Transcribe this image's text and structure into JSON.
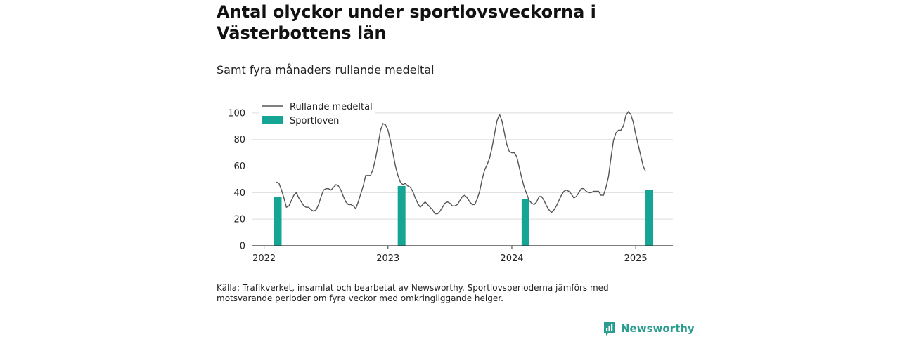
{
  "header": {
    "title": "Antal olyckor under sportlovsveckorna i Västerbottens län",
    "subtitle": "Samt fyra månaders rullande medeltal"
  },
  "footer": {
    "source": "Källa: Trafikverket, insamlat och bearbetat av Newsworthy. Sportlovsperioderna jämförs med motsvarande perioder om fyra veckor med omkringliggande helger.",
    "brand": "Newsworthy"
  },
  "colors": {
    "bar": "#16a594",
    "line": "#555555",
    "grid": "#dddddd",
    "axis": "#333333",
    "brand": "#2a9d8f"
  },
  "chart_data": {
    "type": "bar+line",
    "ylim": [
      0,
      110
    ],
    "xlim": [
      2021.9,
      2025.3
    ],
    "yticks": [
      0,
      20,
      40,
      60,
      80,
      100
    ],
    "xticks": [
      2022,
      2023,
      2024,
      2025
    ],
    "grid": "horizontal",
    "legend_position": "top-left",
    "series": [
      {
        "name": "Rullande medeltal",
        "kind": "line",
        "points": [
          [
            2022.1,
            48
          ],
          [
            2022.12,
            47
          ],
          [
            2022.14,
            42
          ],
          [
            2022.16,
            36
          ],
          [
            2022.18,
            29
          ],
          [
            2022.2,
            30
          ],
          [
            2022.22,
            34
          ],
          [
            2022.24,
            38
          ],
          [
            2022.26,
            40
          ],
          [
            2022.28,
            36
          ],
          [
            2022.3,
            33
          ],
          [
            2022.32,
            30
          ],
          [
            2022.34,
            29
          ],
          [
            2022.36,
            29
          ],
          [
            2022.38,
            27
          ],
          [
            2022.4,
            26
          ],
          [
            2022.42,
            27
          ],
          [
            2022.44,
            31
          ],
          [
            2022.46,
            37
          ],
          [
            2022.48,
            42
          ],
          [
            2022.5,
            43
          ],
          [
            2022.52,
            43
          ],
          [
            2022.54,
            42
          ],
          [
            2022.56,
            44
          ],
          [
            2022.58,
            46
          ],
          [
            2022.6,
            45
          ],
          [
            2022.62,
            42
          ],
          [
            2022.64,
            37
          ],
          [
            2022.66,
            33
          ],
          [
            2022.68,
            31
          ],
          [
            2022.7,
            31
          ],
          [
            2022.72,
            30
          ],
          [
            2022.74,
            28
          ],
          [
            2022.76,
            33
          ],
          [
            2022.78,
            39
          ],
          [
            2022.8,
            45
          ],
          [
            2022.82,
            53
          ],
          [
            2022.84,
            53
          ],
          [
            2022.86,
            53
          ],
          [
            2022.88,
            58
          ],
          [
            2022.9,
            66
          ],
          [
            2022.92,
            76
          ],
          [
            2022.94,
            87
          ],
          [
            2022.96,
            92
          ],
          [
            2022.98,
            91
          ],
          [
            2023.0,
            87
          ],
          [
            2023.02,
            79
          ],
          [
            2023.04,
            70
          ],
          [
            2023.06,
            60
          ],
          [
            2023.08,
            53
          ],
          [
            2023.1,
            48
          ],
          [
            2023.12,
            46
          ],
          [
            2023.14,
            47
          ],
          [
            2023.16,
            45
          ],
          [
            2023.18,
            44
          ],
          [
            2023.2,
            41
          ],
          [
            2023.22,
            36
          ],
          [
            2023.24,
            32
          ],
          [
            2023.26,
            29
          ],
          [
            2023.28,
            31
          ],
          [
            2023.3,
            33
          ],
          [
            2023.32,
            31
          ],
          [
            2023.34,
            29
          ],
          [
            2023.36,
            27
          ],
          [
            2023.38,
            24
          ],
          [
            2023.4,
            24
          ],
          [
            2023.42,
            26
          ],
          [
            2023.44,
            29
          ],
          [
            2023.46,
            32
          ],
          [
            2023.48,
            33
          ],
          [
            2023.5,
            32
          ],
          [
            2023.52,
            30
          ],
          [
            2023.54,
            30
          ],
          [
            2023.56,
            31
          ],
          [
            2023.58,
            34
          ],
          [
            2023.6,
            37
          ],
          [
            2023.62,
            38
          ],
          [
            2023.64,
            36
          ],
          [
            2023.66,
            33
          ],
          [
            2023.68,
            31
          ],
          [
            2023.7,
            31
          ],
          [
            2023.72,
            35
          ],
          [
            2023.74,
            41
          ],
          [
            2023.76,
            50
          ],
          [
            2023.78,
            57
          ],
          [
            2023.8,
            61
          ],
          [
            2023.82,
            66
          ],
          [
            2023.84,
            74
          ],
          [
            2023.86,
            84
          ],
          [
            2023.88,
            94
          ],
          [
            2023.9,
            99
          ],
          [
            2023.92,
            94
          ],
          [
            2023.94,
            85
          ],
          [
            2023.96,
            76
          ],
          [
            2023.98,
            71
          ],
          [
            2024.0,
            70
          ],
          [
            2024.02,
            70
          ],
          [
            2024.04,
            67
          ],
          [
            2024.06,
            59
          ],
          [
            2024.08,
            51
          ],
          [
            2024.1,
            44
          ],
          [
            2024.12,
            39
          ],
          [
            2024.14,
            34
          ],
          [
            2024.16,
            32
          ],
          [
            2024.18,
            31
          ],
          [
            2024.2,
            33
          ],
          [
            2024.22,
            37
          ],
          [
            2024.24,
            37
          ],
          [
            2024.26,
            34
          ],
          [
            2024.28,
            30
          ],
          [
            2024.3,
            27
          ],
          [
            2024.32,
            25
          ],
          [
            2024.34,
            27
          ],
          [
            2024.36,
            30
          ],
          [
            2024.38,
            34
          ],
          [
            2024.4,
            38
          ],
          [
            2024.42,
            41
          ],
          [
            2024.44,
            42
          ],
          [
            2024.46,
            41
          ],
          [
            2024.48,
            39
          ],
          [
            2024.5,
            36
          ],
          [
            2024.52,
            37
          ],
          [
            2024.54,
            40
          ],
          [
            2024.56,
            43
          ],
          [
            2024.58,
            43
          ],
          [
            2024.6,
            41
          ],
          [
            2024.62,
            40
          ],
          [
            2024.64,
            40
          ],
          [
            2024.66,
            41
          ],
          [
            2024.68,
            41
          ],
          [
            2024.7,
            41
          ],
          [
            2024.72,
            38
          ],
          [
            2024.74,
            38
          ],
          [
            2024.76,
            44
          ],
          [
            2024.78,
            52
          ],
          [
            2024.8,
            66
          ],
          [
            2024.82,
            79
          ],
          [
            2024.84,
            85
          ],
          [
            2024.86,
            87
          ],
          [
            2024.88,
            87
          ],
          [
            2024.9,
            90
          ],
          [
            2024.92,
            98
          ],
          [
            2024.94,
            101
          ],
          [
            2024.96,
            99
          ],
          [
            2024.98,
            93
          ],
          [
            2025.0,
            84
          ],
          [
            2025.02,
            76
          ],
          [
            2025.04,
            68
          ],
          [
            2025.06,
            60
          ],
          [
            2025.08,
            56
          ]
        ]
      },
      {
        "name": "Sportloven",
        "kind": "bar",
        "x": [
          2022.11,
          2023.11,
          2024.11,
          2025.11
        ],
        "values": [
          37,
          45,
          35,
          42
        ]
      }
    ]
  }
}
